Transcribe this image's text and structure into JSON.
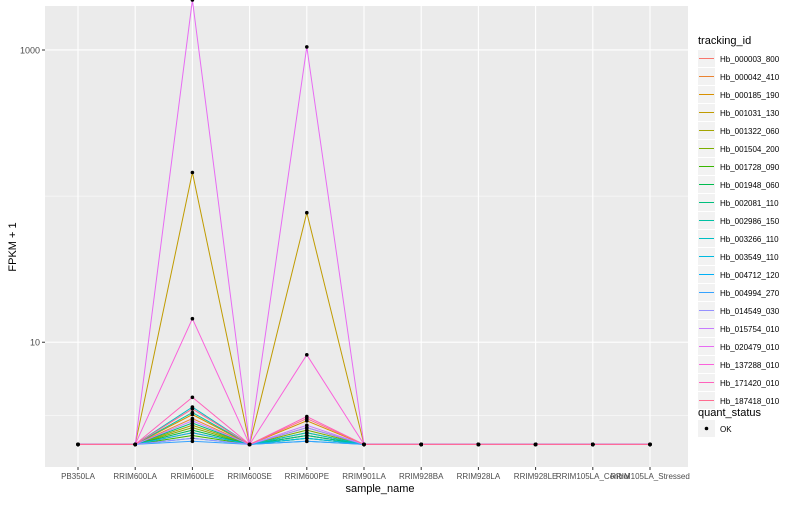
{
  "chart_data": {
    "type": "line",
    "xlabel": "sample_name",
    "ylabel": "FPKM + 1",
    "y_scale": "log10",
    "ylim": [
      1.4,
      2000
    ],
    "y_ticks": [
      {
        "value": 10,
        "label": "10"
      },
      {
        "value": 1000,
        "label": "1000"
      }
    ],
    "grid": true,
    "panel_background": "#ebebeb",
    "legend_position": "right",
    "categories": [
      "PB350LA",
      "RRIM600LA",
      "RRIM600LE",
      "RRIM600SE",
      "RRIM600PE",
      "RRIM901LA",
      "RRIM928BA",
      "RRIM928LA",
      "RRIM928LE",
      "RRIM105LA_Control",
      "RRIM105LA_Stressed"
    ],
    "series": [
      {
        "name": "Hb_000003_800",
        "color": "#F8766D",
        "values": [
          2,
          2,
          2.4,
          2,
          2.3,
          2,
          2,
          2,
          2,
          2,
          2
        ]
      },
      {
        "name": "Hb_000042_410",
        "color": "#EA8331",
        "values": [
          2,
          2,
          3.0,
          2,
          2.6,
          2,
          2,
          2,
          2,
          2,
          2
        ]
      },
      {
        "name": "Hb_000185_190",
        "color": "#D89000",
        "values": [
          2,
          2,
          3.2,
          2,
          2.9,
          2,
          2,
          2,
          2,
          2,
          2
        ]
      },
      {
        "name": "Hb_001031_130",
        "color": "#C09B00",
        "values": [
          2,
          2,
          145,
          2,
          77,
          2,
          2,
          2,
          2,
          2,
          2
        ]
      },
      {
        "name": "Hb_001322_060",
        "color": "#A3A500",
        "values": [
          2,
          2,
          2.7,
          2,
          2.4,
          2,
          2,
          2,
          2,
          2,
          2
        ]
      },
      {
        "name": "Hb_001504_200",
        "color": "#7CAE00",
        "values": [
          2,
          2,
          2.6,
          2,
          2.5,
          2,
          2,
          2,
          2,
          2,
          2
        ]
      },
      {
        "name": "Hb_001728_090",
        "color": "#39B600",
        "values": [
          2,
          2,
          2.3,
          2,
          2.2,
          2,
          2,
          2,
          2,
          2,
          2
        ]
      },
      {
        "name": "Hb_001948_060",
        "color": "#00BB4E",
        "values": [
          2,
          2,
          2.5,
          2,
          2.3,
          2,
          2,
          2,
          2,
          2,
          2
        ]
      },
      {
        "name": "Hb_002081_110",
        "color": "#00BF7D",
        "values": [
          2,
          2,
          2.8,
          2,
          2.3,
          2,
          2,
          2,
          2,
          2,
          2
        ]
      },
      {
        "name": "Hb_002986_150",
        "color": "#00C1A3",
        "values": [
          2,
          2,
          3.3,
          2,
          2.2,
          2,
          2,
          2,
          2,
          2,
          2
        ]
      },
      {
        "name": "Hb_003266_110",
        "color": "#00BFC4",
        "values": [
          2,
          2,
          3.6,
          2,
          2.4,
          2,
          2,
          2,
          2,
          2,
          2
        ]
      },
      {
        "name": "Hb_003549_110",
        "color": "#00BAE0",
        "values": [
          2,
          2,
          2.4,
          2,
          2.2,
          2,
          2,
          2,
          2,
          2,
          2
        ]
      },
      {
        "name": "Hb_004712_120",
        "color": "#00B0F6",
        "values": [
          2,
          2,
          2.2,
          2,
          2.1,
          2,
          2,
          2,
          2,
          2,
          2
        ]
      },
      {
        "name": "Hb_004994_270",
        "color": "#35A2FF",
        "values": [
          2,
          2,
          2.1,
          2,
          2.1,
          2,
          2,
          2,
          2,
          2,
          2
        ]
      },
      {
        "name": "Hb_014549_030",
        "color": "#9590FF",
        "values": [
          2,
          2,
          2.2,
          2,
          2.6,
          2,
          2,
          2,
          2,
          2,
          2
        ]
      },
      {
        "name": "Hb_015754_010",
        "color": "#C77CFF",
        "values": [
          2,
          2,
          2.9,
          2,
          2.7,
          2,
          2,
          2,
          2,
          2,
          2
        ]
      },
      {
        "name": "Hb_020479_010",
        "color": "#E76BF3",
        "values": [
          2,
          2,
          2200,
          2,
          1050,
          2,
          2,
          2,
          2,
          2,
          2
        ]
      },
      {
        "name": "Hb_137288_010",
        "color": "#FA62DB",
        "values": [
          2,
          2,
          14.5,
          2,
          8.2,
          2,
          2,
          2,
          2,
          2,
          2
        ]
      },
      {
        "name": "Hb_171420_010",
        "color": "#FF62BC",
        "values": [
          2,
          2,
          4.2,
          2,
          3.1,
          2,
          2,
          2,
          2,
          2,
          2
        ]
      },
      {
        "name": "Hb_187418_010",
        "color": "#FF6C91",
        "values": [
          2,
          2,
          3.5,
          2,
          3.0,
          2,
          2,
          2,
          2,
          2,
          2
        ]
      }
    ],
    "legend": {
      "title": "tracking_id"
    },
    "shape_legend": {
      "title": "quant_status",
      "items": [
        "OK"
      ]
    }
  }
}
